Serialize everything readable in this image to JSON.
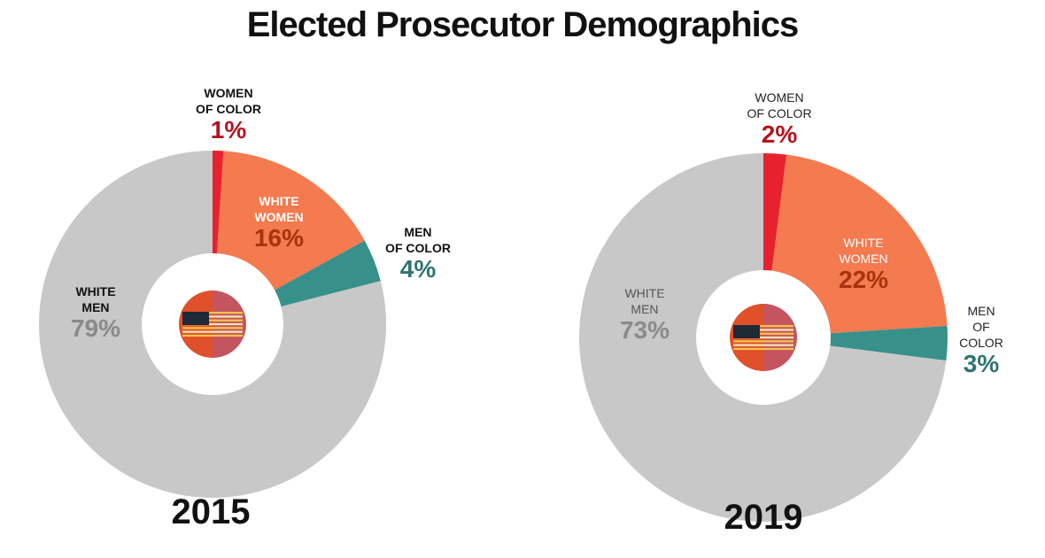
{
  "title": "Elected Prosecutor Demographics",
  "chart_data": [
    {
      "type": "donut",
      "title": "2015",
      "categories": [
        "WOMEN\nOF COLOR",
        "WHITE\nWOMEN",
        "MEN\nOF COLOR",
        "WHITE\nMEN"
      ],
      "values": [
        1,
        16,
        4,
        79
      ],
      "value_labels": [
        "1%",
        "16%",
        "4%",
        "79%"
      ],
      "colors": [
        "#e8212e",
        "#f47a4f",
        "#38908a",
        "#c8c8c8"
      ]
    },
    {
      "type": "donut",
      "title": "2019",
      "categories": [
        "WOMEN\nOF COLOR",
        "WHITE\nWOMEN",
        "MEN\nOF COLOR",
        "WHITE\nMEN"
      ],
      "values": [
        2,
        22,
        3,
        73
      ],
      "value_labels": [
        "2%",
        "22%",
        "3%",
        "73%"
      ],
      "colors": [
        "#e8212e",
        "#f47a4f",
        "#38908a",
        "#c8c8c8"
      ]
    }
  ]
}
